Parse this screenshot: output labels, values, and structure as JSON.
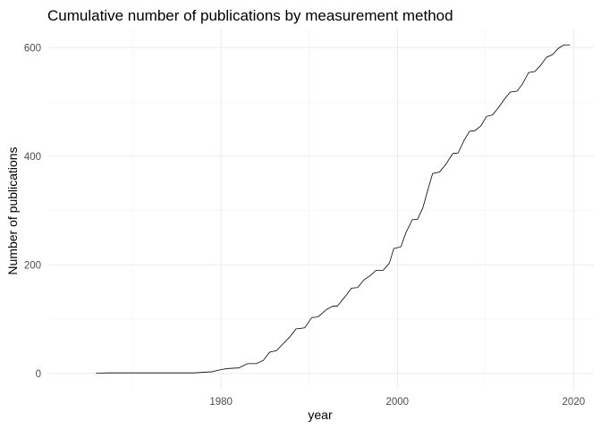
{
  "chart_data": {
    "type": "line",
    "title": "Cumulative number of publications by measurement method",
    "xlabel": "year",
    "ylabel": "Number of publications",
    "xlim": [
      1960.5,
      2022.3
    ],
    "ylim": [
      -30,
      635
    ],
    "x_ticks": [
      1980,
      2000,
      2020
    ],
    "x_tick_labels": [
      "1980",
      "2000",
      "2020"
    ],
    "x_minor_ticks": [
      1970,
      1990,
      2010
    ],
    "y_ticks": [
      0,
      200,
      400,
      600
    ],
    "y_tick_labels": [
      "0",
      "200",
      "400",
      "600"
    ],
    "y_minor_ticks": [
      100,
      300,
      500
    ],
    "grid": true,
    "legend": "none",
    "series": [
      {
        "color": "#000000",
        "points": [
          [
            1965.8,
            0
          ],
          [
            1966.5,
            0.5
          ],
          [
            1967.0,
            1
          ],
          [
            1977.0,
            1
          ],
          [
            1978.0,
            2
          ],
          [
            1979.0,
            3
          ],
          [
            1980.0,
            7
          ],
          [
            1980.8,
            9
          ],
          [
            1982.0,
            10
          ],
          [
            1983.0,
            18
          ],
          [
            1984.0,
            18
          ],
          [
            1984.8,
            24
          ],
          [
            1985.5,
            39
          ],
          [
            1986.3,
            42
          ],
          [
            1987.0,
            54
          ],
          [
            1987.8,
            67
          ],
          [
            1988.5,
            82
          ],
          [
            1989.5,
            84
          ],
          [
            1990.3,
            103
          ],
          [
            1991.0,
            104
          ],
          [
            1992.0,
            118
          ],
          [
            1992.7,
            124
          ],
          [
            1993.2,
            124
          ],
          [
            1994.3,
            146
          ],
          [
            1994.8,
            157
          ],
          [
            1995.5,
            158
          ],
          [
            1996.2,
            172
          ],
          [
            1997.0,
            181
          ],
          [
            1997.6,
            190
          ],
          [
            1998.4,
            190
          ],
          [
            1999.1,
            203
          ],
          [
            1999.6,
            230
          ],
          [
            2000.4,
            233
          ],
          [
            2001.0,
            260
          ],
          [
            2001.7,
            283
          ],
          [
            2002.3,
            284
          ],
          [
            2002.9,
            305
          ],
          [
            2003.5,
            340
          ],
          [
            2004.0,
            368
          ],
          [
            2004.8,
            371
          ],
          [
            2005.5,
            385
          ],
          [
            2006.3,
            405
          ],
          [
            2006.9,
            406
          ],
          [
            2007.6,
            430
          ],
          [
            2008.2,
            446
          ],
          [
            2008.8,
            447
          ],
          [
            2009.5,
            456
          ],
          [
            2010.1,
            473
          ],
          [
            2010.8,
            476
          ],
          [
            2011.5,
            490
          ],
          [
            2012.2,
            506
          ],
          [
            2012.8,
            518
          ],
          [
            2013.6,
            520
          ],
          [
            2014.2,
            533
          ],
          [
            2014.9,
            554
          ],
          [
            2015.6,
            556
          ],
          [
            2016.3,
            568
          ],
          [
            2016.9,
            582
          ],
          [
            2017.6,
            587
          ],
          [
            2018.3,
            599
          ],
          [
            2018.9,
            605
          ],
          [
            2019.6,
            605
          ]
        ]
      }
    ]
  }
}
